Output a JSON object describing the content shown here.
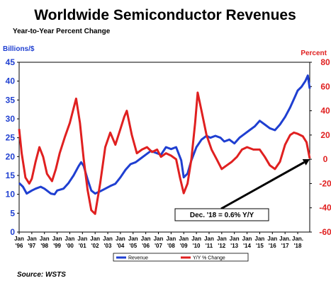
{
  "chart_data": {
    "type": "line",
    "title": "Worldwide Semiconductor Revenues",
    "subtitle": "Year-to-Year Percent Change",
    "ylabel_left": "Billions/$",
    "ylabel_right": "Percent",
    "source": "Source: WSTS",
    "y_left_lim": [
      0,
      45
    ],
    "y_left_ticks": [
      0,
      5,
      10,
      15,
      20,
      25,
      30,
      35,
      40,
      45
    ],
    "y_right_lim": [
      -60,
      80
    ],
    "y_right_ticks": [
      -60,
      -40,
      -20,
      0,
      20,
      40,
      60,
      80
    ],
    "x_lim": [
      1996.0,
      2018.95
    ],
    "x_ticks": [
      {
        "x": 1996.0,
        "top": "Jan",
        "bottom": "'96"
      },
      {
        "x": 1997.0,
        "top": "Jan",
        "bottom": "'97"
      },
      {
        "x": 1998.0,
        "top": "Jan",
        "bottom": "'98"
      },
      {
        "x": 1999.0,
        "top": "Jan",
        "bottom": "'99"
      },
      {
        "x": 2000.0,
        "top": "Jan",
        "bottom": "'00"
      },
      {
        "x": 2001.0,
        "top": "Jan",
        "bottom": "'01"
      },
      {
        "x": 2002.0,
        "top": "Jan",
        "bottom": "'02"
      },
      {
        "x": 2003.0,
        "top": "Jan",
        "bottom": "'03"
      },
      {
        "x": 2004.0,
        "top": "Jan",
        "bottom": "'04"
      },
      {
        "x": 2005.0,
        "top": "Jan",
        "bottom": "'05"
      },
      {
        "x": 2006.0,
        "top": "Jan",
        "bottom": "'06"
      },
      {
        "x": 2007.0,
        "top": "Jan",
        "bottom": "'07"
      },
      {
        "x": 2008.0,
        "top": "Jan",
        "bottom": "'08"
      },
      {
        "x": 2009.0,
        "top": "Jan",
        "bottom": "'09"
      },
      {
        "x": 2010.0,
        "top": "Jan",
        "bottom": "'10"
      },
      {
        "x": 2011.0,
        "top": "Jan",
        "bottom": "'11"
      },
      {
        "x": 2012.0,
        "top": "Jan",
        "bottom": "'12"
      },
      {
        "x": 2013.0,
        "top": "Jan",
        "bottom": "'13"
      },
      {
        "x": 2014.0,
        "top": "Jan",
        "bottom": "'14"
      },
      {
        "x": 2015.0,
        "top": "Jan",
        "bottom": "'15"
      },
      {
        "x": 2016.0,
        "top": "Jan",
        "bottom": "'16"
      },
      {
        "x": 2017.0,
        "top": "Jan.",
        "bottom": "'17"
      },
      {
        "x": 2018.0,
        "top": "Jan.",
        "bottom": "'18"
      }
    ],
    "grid": false,
    "legend_position": "bottom-center",
    "series": [
      {
        "name": "Revenue",
        "axis": "left",
        "color": "#1f3fd1",
        "points": [
          [
            1996.0,
            13.0
          ],
          [
            1996.3,
            12.0
          ],
          [
            1996.6,
            10.2
          ],
          [
            1997.0,
            11.0
          ],
          [
            1997.3,
            11.5
          ],
          [
            1997.7,
            12.0
          ],
          [
            1998.0,
            11.5
          ],
          [
            1998.5,
            10.2
          ],
          [
            1998.8,
            10.0
          ],
          [
            1999.0,
            11.0
          ],
          [
            1999.5,
            11.5
          ],
          [
            1999.9,
            13.0
          ],
          [
            2000.3,
            15.0
          ],
          [
            2000.7,
            17.5
          ],
          [
            2000.9,
            18.5
          ],
          [
            2001.1,
            17.5
          ],
          [
            2001.4,
            14.0
          ],
          [
            2001.7,
            11.0
          ],
          [
            2002.0,
            10.2
          ],
          [
            2002.4,
            10.8
          ],
          [
            2002.8,
            11.5
          ],
          [
            2003.2,
            12.2
          ],
          [
            2003.6,
            12.8
          ],
          [
            2004.0,
            14.5
          ],
          [
            2004.4,
            16.5
          ],
          [
            2004.8,
            18.0
          ],
          [
            2005.2,
            18.5
          ],
          [
            2005.6,
            19.5
          ],
          [
            2006.0,
            20.5
          ],
          [
            2006.4,
            21.5
          ],
          [
            2006.8,
            21.0
          ],
          [
            2007.2,
            20.5
          ],
          [
            2007.6,
            22.5
          ],
          [
            2008.0,
            22.0
          ],
          [
            2008.4,
            22.5
          ],
          [
            2008.8,
            19.0
          ],
          [
            2009.0,
            14.5
          ],
          [
            2009.3,
            15.5
          ],
          [
            2009.6,
            19.0
          ],
          [
            2010.0,
            22.5
          ],
          [
            2010.4,
            24.5
          ],
          [
            2010.8,
            25.5
          ],
          [
            2011.1,
            25.0
          ],
          [
            2011.5,
            25.5
          ],
          [
            2011.9,
            25.0
          ],
          [
            2012.2,
            24.0
          ],
          [
            2012.6,
            24.5
          ],
          [
            2013.0,
            23.5
          ],
          [
            2013.4,
            25.0
          ],
          [
            2013.8,
            26.0
          ],
          [
            2014.2,
            27.0
          ],
          [
            2014.6,
            28.0
          ],
          [
            2015.0,
            29.5
          ],
          [
            2015.4,
            28.5
          ],
          [
            2015.8,
            27.5
          ],
          [
            2016.2,
            27.0
          ],
          [
            2016.6,
            28.5
          ],
          [
            2017.0,
            30.5
          ],
          [
            2017.4,
            33.0
          ],
          [
            2017.8,
            36.0
          ],
          [
            2018.0,
            37.5
          ],
          [
            2018.3,
            38.5
          ],
          [
            2018.6,
            40.0
          ],
          [
            2018.8,
            41.5
          ],
          [
            2018.95,
            38.0
          ]
        ]
      },
      {
        "name": "Y/Y % Change",
        "axis": "right",
        "color": "#e02020",
        "points": [
          [
            1996.0,
            25.0
          ],
          [
            1996.2,
            5.0
          ],
          [
            1996.5,
            -15.0
          ],
          [
            1996.8,
            -20.0
          ],
          [
            1997.0,
            -16.0
          ],
          [
            1997.3,
            -2.0
          ],
          [
            1997.6,
            10.0
          ],
          [
            1997.9,
            2.0
          ],
          [
            1998.2,
            -12.0
          ],
          [
            1998.6,
            -18.0
          ],
          [
            1998.9,
            -8.0
          ],
          [
            1999.2,
            5.0
          ],
          [
            1999.6,
            18.0
          ],
          [
            2000.0,
            30.0
          ],
          [
            2000.3,
            42.0
          ],
          [
            2000.5,
            50.0
          ],
          [
            2000.8,
            30.0
          ],
          [
            2001.1,
            0.0
          ],
          [
            2001.4,
            -25.0
          ],
          [
            2001.7,
            -42.0
          ],
          [
            2002.0,
            -45.0
          ],
          [
            2002.4,
            -20.0
          ],
          [
            2002.8,
            10.0
          ],
          [
            2003.2,
            22.0
          ],
          [
            2003.6,
            12.0
          ],
          [
            2004.0,
            25.0
          ],
          [
            2004.3,
            35.0
          ],
          [
            2004.5,
            40.0
          ],
          [
            2004.9,
            20.0
          ],
          [
            2005.3,
            5.0
          ],
          [
            2005.7,
            8.0
          ],
          [
            2006.1,
            10.0
          ],
          [
            2006.5,
            6.0
          ],
          [
            2006.9,
            8.0
          ],
          [
            2007.2,
            2.0
          ],
          [
            2007.6,
            5.0
          ],
          [
            2008.0,
            3.0
          ],
          [
            2008.4,
            0.0
          ],
          [
            2008.7,
            -15.0
          ],
          [
            2009.0,
            -28.0
          ],
          [
            2009.3,
            -20.0
          ],
          [
            2009.6,
            0.0
          ],
          [
            2009.9,
            30.0
          ],
          [
            2010.1,
            55.0
          ],
          [
            2010.4,
            40.0
          ],
          [
            2010.8,
            20.0
          ],
          [
            2011.2,
            8.0
          ],
          [
            2011.6,
            0.0
          ],
          [
            2012.0,
            -8.0
          ],
          [
            2012.4,
            -5.0
          ],
          [
            2012.8,
            -2.0
          ],
          [
            2013.2,
            2.0
          ],
          [
            2013.6,
            8.0
          ],
          [
            2014.0,
            10.0
          ],
          [
            2014.5,
            8.0
          ],
          [
            2015.0,
            8.0
          ],
          [
            2015.4,
            2.0
          ],
          [
            2015.8,
            -5.0
          ],
          [
            2016.2,
            -8.0
          ],
          [
            2016.6,
            -2.0
          ],
          [
            2017.0,
            12.0
          ],
          [
            2017.4,
            20.0
          ],
          [
            2017.7,
            22.0
          ],
          [
            2018.0,
            21.0
          ],
          [
            2018.4,
            19.0
          ],
          [
            2018.7,
            14.0
          ],
          [
            2018.95,
            0.6
          ]
        ]
      }
    ],
    "annotations": [
      {
        "text": "Dec. '18 = 0.6% Y/Y",
        "target_x": 2018.95,
        "target_y_left": 0
      }
    ]
  }
}
